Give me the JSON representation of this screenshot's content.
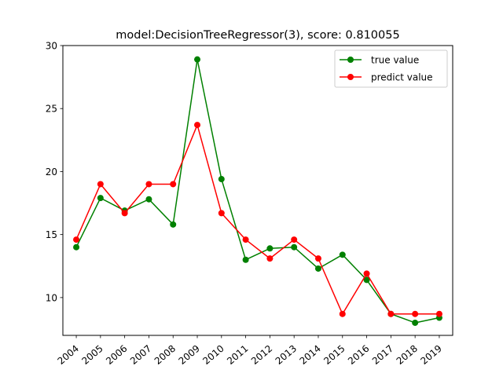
{
  "chart_data": {
    "type": "line",
    "title": "model:DecisionTreeRegressor(3), score: 0.810055",
    "xlabel": "",
    "ylabel": "",
    "x": [
      "2004",
      "2005",
      "2006",
      "2007",
      "2008",
      "2009",
      "2010",
      "2011",
      "2012",
      "2013",
      "2014",
      "2015",
      "2016",
      "2017",
      "2018",
      "2019"
    ],
    "ylim": [
      7,
      30
    ],
    "yticks": [
      10,
      15,
      20,
      25,
      30
    ],
    "grid": false,
    "legend_position": "top-right",
    "series": [
      {
        "name": "true value",
        "color": "#008000",
        "values": [
          14.0,
          17.9,
          16.9,
          17.8,
          15.8,
          28.9,
          19.4,
          13.0,
          13.9,
          14.0,
          12.3,
          13.4,
          11.4,
          8.7,
          8.0,
          8.4
        ]
      },
      {
        "name": "predict value",
        "color": "#ff0000",
        "values": [
          14.6,
          19.0,
          16.7,
          19.0,
          19.0,
          23.7,
          16.7,
          14.6,
          13.1,
          14.6,
          13.1,
          8.7,
          11.9,
          8.7,
          8.7,
          8.7
        ]
      }
    ]
  }
}
